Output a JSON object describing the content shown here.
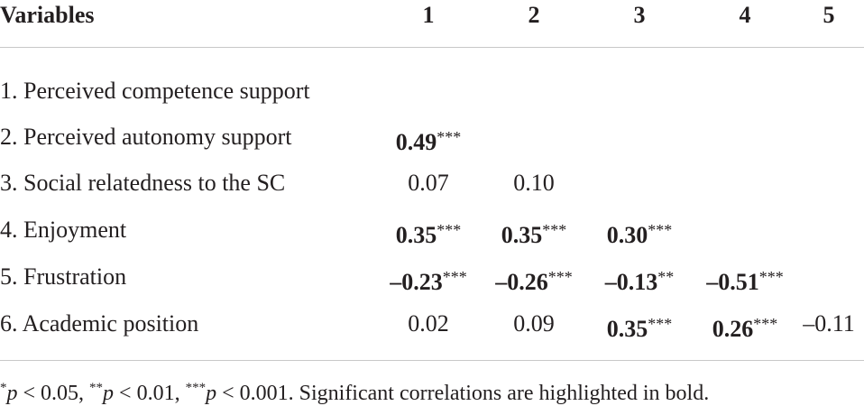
{
  "headers": [
    "Variables",
    "1",
    "2",
    "3",
    "4",
    "5"
  ],
  "rows": [
    {
      "label": "1. Perceived competence support",
      "cells": [
        null,
        null,
        null,
        null,
        null
      ]
    },
    {
      "label": "2. Perceived autonomy support",
      "cells": [
        {
          "v": "0.49",
          "s": "***",
          "bold": true
        },
        null,
        null,
        null,
        null
      ]
    },
    {
      "label": "3. Social relatedness to the SC",
      "cells": [
        {
          "v": "0.07",
          "s": "",
          "bold": false
        },
        {
          "v": "0.10",
          "s": "",
          "bold": false
        },
        null,
        null,
        null
      ]
    },
    {
      "label": "4. Enjoyment",
      "cells": [
        {
          "v": "0.35",
          "s": "***",
          "bold": true
        },
        {
          "v": "0.35",
          "s": "***",
          "bold": true
        },
        {
          "v": "0.30",
          "s": "***",
          "bold": true
        },
        null,
        null
      ]
    },
    {
      "label": "5. Frustration",
      "cells": [
        {
          "v": "–0.23",
          "s": "***",
          "bold": true
        },
        {
          "v": "–0.26",
          "s": "***",
          "bold": true
        },
        {
          "v": "–0.13",
          "s": "**",
          "bold": true
        },
        {
          "v": "–0.51",
          "s": "***",
          "bold": true
        },
        null
      ]
    },
    {
      "label": "6. Academic position",
      "cells": [
        {
          "v": "0.02",
          "s": "",
          "bold": false
        },
        {
          "v": "0.09",
          "s": "",
          "bold": false
        },
        {
          "v": "0.35",
          "s": "***",
          "bold": true
        },
        {
          "v": "0.26",
          "s": "***",
          "bold": true
        },
        {
          "v": "–0.11",
          "s": "",
          "bold": false
        }
      ]
    }
  ],
  "footnote": {
    "s1": "*",
    "p1": "p",
    "t1": " < 0.05, ",
    "s2": "**",
    "p2": "p",
    "t2": " < 0.01, ",
    "s3": "***",
    "p3": "p",
    "t3": " < 0.001. Significant correlations are highlighted in bold."
  }
}
